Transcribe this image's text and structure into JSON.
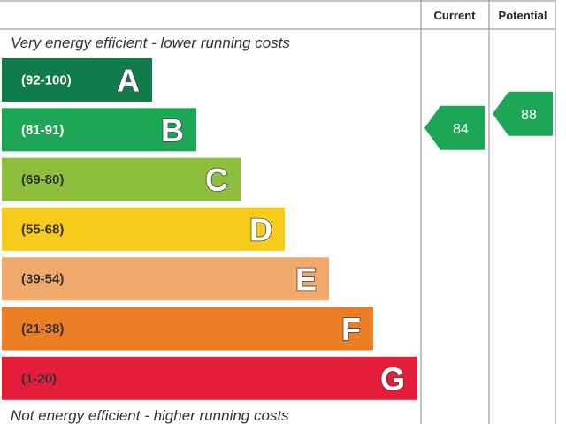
{
  "chart_data": {
    "type": "bar",
    "top_caption": "Very energy efficient - lower running costs",
    "bottom_caption": "Not energy efficient - higher running costs",
    "columns": [
      "Current",
      "Potential"
    ],
    "bands": [
      {
        "letter": "A",
        "range": "(92-100)",
        "color": "#107c4b",
        "range_color": "#ffffff"
      },
      {
        "letter": "B",
        "range": "(81-91)",
        "color": "#1da655",
        "range_color": "#ffffff"
      },
      {
        "letter": "C",
        "range": "(69-80)",
        "color": "#8dbf3c",
        "range_color": "#333333"
      },
      {
        "letter": "D",
        "range": "(55-68)",
        "color": "#f7cb1b",
        "range_color": "#333333"
      },
      {
        "letter": "E",
        "range": "(39-54)",
        "color": "#f0a96b",
        "range_color": "#333333"
      },
      {
        "letter": "F",
        "range": "(21-38)",
        "color": "#eb7d25",
        "range_color": "#333333"
      },
      {
        "letter": "G",
        "range": "(1-20)",
        "color": "#e31d3a",
        "range_color": "#333333"
      }
    ],
    "ratings": [
      {
        "column": "Current",
        "value": 84,
        "band": "B",
        "color": "#1da655"
      },
      {
        "column": "Potential",
        "value": 88,
        "band": "B",
        "color": "#1da655"
      }
    ]
  }
}
